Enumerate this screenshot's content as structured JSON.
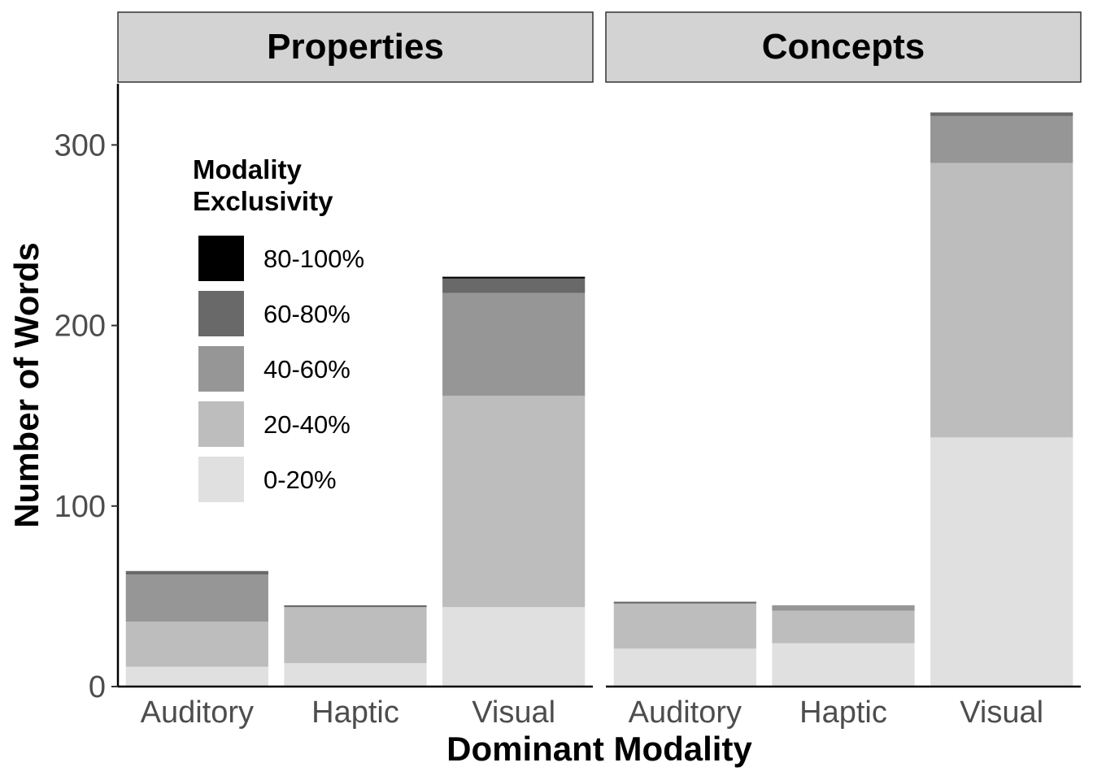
{
  "chart_data": {
    "type": "bar",
    "stacked": true,
    "facets": [
      "Properties",
      "Concepts"
    ],
    "categories": [
      "Auditory",
      "Haptic",
      "Visual"
    ],
    "xlabel": "Dominant Modality",
    "ylabel": "Number of Words",
    "ylim": [
      0,
      333
    ],
    "yticks": [
      0,
      100,
      200,
      300
    ],
    "grid": false,
    "legend": {
      "title_lines": [
        "Modality",
        "Exclusivity"
      ],
      "position": "inside-top-left",
      "entries": [
        "80-100%",
        "60-80%",
        "40-60%",
        "20-40%",
        "0-20%"
      ]
    },
    "series": [
      {
        "name": "0-20%",
        "color": "#e0e0e0",
        "values": {
          "Properties": [
            11,
            13,
            44
          ],
          "Concepts": [
            21,
            24,
            138
          ]
        }
      },
      {
        "name": "20-40%",
        "color": "#bdbdbd",
        "values": {
          "Properties": [
            25,
            31,
            117
          ],
          "Concepts": [
            25,
            18,
            152
          ]
        }
      },
      {
        "name": "40-60%",
        "color": "#969696",
        "values": {
          "Properties": [
            26,
            0,
            57
          ],
          "Concepts": [
            0,
            3,
            26
          ]
        }
      },
      {
        "name": "60-80%",
        "color": "#696969",
        "values": {
          "Properties": [
            2,
            1,
            8
          ],
          "Concepts": [
            1,
            0,
            2
          ]
        }
      },
      {
        "name": "80-100%",
        "color": "#000000",
        "values": {
          "Properties": [
            0,
            0,
            1
          ],
          "Concepts": [
            0,
            0,
            0
          ]
        }
      }
    ]
  }
}
